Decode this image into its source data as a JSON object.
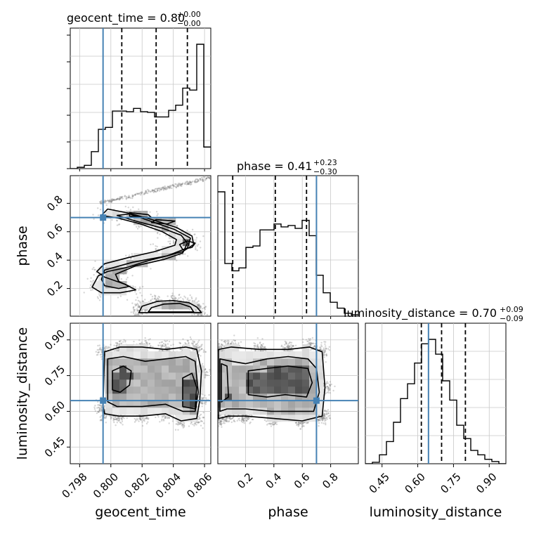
{
  "chart_data": {
    "type": "corner",
    "parameters": [
      {
        "name": "geocent_time",
        "label": "geocent_time",
        "title_main": "geocent_time = 0.80",
        "title_plus": "+0.00",
        "title_minus": "−0.00",
        "range": [
          0.7974,
          0.8064
        ],
        "ticks": [
          0.798,
          0.8,
          0.802,
          0.804,
          0.806
        ],
        "tick_labels": [
          "0.798",
          "0.800",
          "0.802",
          "0.804",
          "0.806"
        ],
        "truth": 0.7995,
        "quantiles": [
          0.8007,
          0.8029,
          0.8049
        ],
        "hist_edges_start": 0.7974,
        "hist_bin_width": 0.00045,
        "hist_counts": [
          0,
          2,
          5,
          26,
          60,
          63,
          88,
          88,
          87,
          92,
          87,
          86,
          79,
          79,
          89,
          97,
          123,
          120,
          190,
          33
        ]
      },
      {
        "name": "phase",
        "label": "phase",
        "title_main": "phase = 0.41",
        "title_plus": "+0.23",
        "title_minus": "−0.30",
        "range": [
          0.005,
          0.995
        ],
        "ticks": [
          0.2,
          0.4,
          0.6,
          0.8
        ],
        "tick_labels": [
          "0.2",
          "0.4",
          "0.6",
          "0.8"
        ],
        "truth": 0.7,
        "quantiles": [
          0.11,
          0.41,
          0.63
        ],
        "hist_edges_start": 0.005,
        "hist_bin_width": 0.0495,
        "hist_counts": [
          170,
          72,
          62,
          66,
          94,
          96,
          118,
          118,
          126,
          122,
          124,
          120,
          131,
          110,
          56,
          32,
          19,
          11,
          4,
          2
        ]
      },
      {
        "name": "luminosity_distance",
        "label": "luminosity_distance",
        "title_main": "luminosity_distance = 0.70",
        "title_plus": "+0.09",
        "title_minus": "−0.09",
        "range": [
          0.38,
          0.97
        ],
        "ticks": [
          0.45,
          0.6,
          0.75,
          0.9
        ],
        "tick_labels": [
          "0.45",
          "0.60",
          "0.75",
          "0.90"
        ],
        "truth": 0.645,
        "quantiles": [
          0.615,
          0.7,
          0.8
        ],
        "hist_edges_start": 0.38,
        "hist_bin_width": 0.0295,
        "hist_counts": [
          0,
          2,
          12,
          30,
          56,
          88,
          108,
          136,
          162,
          168,
          148,
          112,
          86,
          52,
          34,
          18,
          12,
          6,
          3,
          0
        ]
      }
    ],
    "y_ticks": {
      "phase": {
        "ticks": [
          0.2,
          0.4,
          0.6,
          0.8
        ],
        "tick_labels": [
          "0.2",
          "0.4",
          "0.6",
          "0.8"
        ]
      },
      "luminosity_distance": {
        "ticks": [
          0.45,
          0.6,
          0.75,
          0.9
        ],
        "tick_labels": [
          "0.45",
          "0.60",
          "0.75",
          "0.90"
        ]
      }
    },
    "truth_color": "#4682b4",
    "quantile_line_style": "dashed",
    "grid": true,
    "contour_shapes": {
      "phase_vs_geocent_time": [
        {
          "level": 1,
          "points": [
            [
              0.7988,
              0.21
            ],
            [
              0.7992,
              0.29
            ],
            [
              0.7998,
              0.32
            ],
            [
              0.8011,
              0.35
            ],
            [
              0.8022,
              0.39
            ],
            [
              0.8036,
              0.43
            ],
            [
              0.8046,
              0.46
            ],
            [
              0.8053,
              0.51
            ],
            [
              0.8052,
              0.57
            ],
            [
              0.8042,
              0.63
            ],
            [
              0.8028,
              0.68
            ],
            [
              0.8012,
              0.73
            ],
            [
              0.7998,
              0.76
            ],
            [
              0.7994,
              0.715
            ],
            [
              0.8005,
              0.695
            ],
            [
              0.8019,
              0.655
            ],
            [
              0.8033,
              0.6
            ],
            [
              0.8042,
              0.545
            ],
            [
              0.8041,
              0.505
            ],
            [
              0.8028,
              0.46
            ],
            [
              0.8012,
              0.42
            ],
            [
              0.7996,
              0.375
            ],
            [
              0.7991,
              0.32
            ],
            [
              0.7996,
              0.28
            ],
            [
              0.8009,
              0.23
            ],
            [
              0.8016,
              0.19
            ],
            [
              0.8006,
              0.17
            ],
            [
              0.7994,
              0.17
            ]
          ]
        },
        {
          "level": 2,
          "points": [
            [
              0.7996,
              0.22
            ],
            [
              0.8005,
              0.2
            ],
            [
              0.8012,
              0.215
            ],
            [
              0.8005,
              0.25
            ],
            [
              0.8003,
              0.3
            ],
            [
              0.8016,
              0.36
            ],
            [
              0.8034,
              0.405
            ],
            [
              0.8046,
              0.45
            ],
            [
              0.8049,
              0.52
            ],
            [
              0.8045,
              0.575
            ],
            [
              0.8033,
              0.625
            ],
            [
              0.8016,
              0.675
            ],
            [
              0.8004,
              0.715
            ],
            [
              0.8012,
              0.725
            ],
            [
              0.8028,
              0.665
            ],
            [
              0.8041,
              0.615
            ],
            [
              0.8051,
              0.555
            ],
            [
              0.8049,
              0.485
            ],
            [
              0.8036,
              0.43
            ],
            [
              0.8014,
              0.385
            ],
            [
              0.7996,
              0.33
            ],
            [
              0.7994,
              0.265
            ]
          ]
        },
        {
          "level": 2,
          "points": [
            [
              0.8012,
              0.735
            ],
            [
              0.8024,
              0.72
            ],
            [
              0.8026,
              0.7
            ],
            [
              0.8012,
              0.71
            ]
          ]
        },
        {
          "level": 2,
          "points": [
            [
              0.8029,
              0.685
            ],
            [
              0.8041,
              0.675
            ],
            [
              0.8036,
              0.655
            ],
            [
              0.8026,
              0.665
            ]
          ]
        },
        {
          "level": 3,
          "points": [
            [
              0.8049,
              0.535
            ],
            [
              0.8054,
              0.52
            ],
            [
              0.8052,
              0.49
            ],
            [
              0.8046,
              0.475
            ],
            [
              0.8044,
              0.51
            ]
          ]
        },
        {
          "level": 1,
          "points": [
            [
              0.802,
              0.075
            ],
            [
              0.803,
              0.11
            ],
            [
              0.804,
              0.115
            ],
            [
              0.805,
              0.1
            ],
            [
              0.8055,
              0.07
            ],
            [
              0.8058,
              0.03
            ],
            [
              0.8018,
              0.03
            ]
          ]
        },
        {
          "level": 2,
          "points": [
            [
              0.8026,
              0.065
            ],
            [
              0.8034,
              0.09
            ],
            [
              0.8044,
              0.095
            ],
            [
              0.8051,
              0.07
            ],
            [
              0.8053,
              0.035
            ],
            [
              0.8024,
              0.035
            ]
          ]
        }
      ],
      "luminosity_distance_vs_geocent_time": [
        {
          "level": 1,
          "points": [
            [
              0.7995,
              0.62
            ],
            [
              0.7996,
              0.85
            ],
            [
              0.8006,
              0.87
            ],
            [
              0.802,
              0.87
            ],
            [
              0.8035,
              0.86
            ],
            [
              0.8048,
              0.87
            ],
            [
              0.8055,
              0.86
            ],
            [
              0.8058,
              0.77
            ],
            [
              0.8057,
              0.65
            ],
            [
              0.8055,
              0.57
            ],
            [
              0.8045,
              0.56
            ],
            [
              0.8035,
              0.59
            ],
            [
              0.802,
              0.58
            ],
            [
              0.8005,
              0.58
            ],
            [
              0.7996,
              0.59
            ]
          ]
        },
        {
          "level": 2,
          "points": [
            [
              0.7998,
              0.64
            ],
            [
              0.7998,
              0.82
            ],
            [
              0.8008,
              0.83
            ],
            [
              0.8022,
              0.81
            ],
            [
              0.8035,
              0.82
            ],
            [
              0.8048,
              0.83
            ],
            [
              0.8054,
              0.81
            ],
            [
              0.8056,
              0.68
            ],
            [
              0.8054,
              0.6
            ],
            [
              0.8046,
              0.6
            ],
            [
              0.8035,
              0.63
            ],
            [
              0.802,
              0.62
            ],
            [
              0.8004,
              0.62
            ]
          ]
        },
        {
          "level": 3,
          "points": [
            [
              0.8001,
              0.69
            ],
            [
              0.8001,
              0.77
            ],
            [
              0.8008,
              0.79
            ],
            [
              0.8013,
              0.77
            ],
            [
              0.8012,
              0.71
            ],
            [
              0.8006,
              0.68
            ]
          ]
        },
        {
          "level": 3,
          "points": [
            [
              0.8046,
              0.62
            ],
            [
              0.8046,
              0.74
            ],
            [
              0.8052,
              0.76
            ],
            [
              0.8055,
              0.7
            ],
            [
              0.8054,
              0.61
            ]
          ]
        }
      ],
      "luminosity_distance_vs_phase": [
        {
          "level": 1,
          "points": [
            [
              0.01,
              0.57
            ],
            [
              0.01,
              0.86
            ],
            [
              0.1,
              0.87
            ],
            [
              0.3,
              0.86
            ],
            [
              0.5,
              0.86
            ],
            [
              0.65,
              0.87
            ],
            [
              0.74,
              0.85
            ],
            [
              0.76,
              0.7
            ],
            [
              0.74,
              0.58
            ],
            [
              0.6,
              0.56
            ],
            [
              0.4,
              0.57
            ],
            [
              0.2,
              0.58
            ],
            [
              0.08,
              0.58
            ]
          ]
        },
        {
          "level": 2,
          "points": [
            [
              0.02,
              0.6
            ],
            [
              0.02,
              0.82
            ],
            [
              0.1,
              0.81
            ],
            [
              0.2,
              0.8
            ],
            [
              0.35,
              0.82
            ],
            [
              0.5,
              0.83
            ],
            [
              0.64,
              0.82
            ],
            [
              0.7,
              0.78
            ],
            [
              0.72,
              0.68
            ],
            [
              0.68,
              0.6
            ],
            [
              0.55,
              0.6
            ],
            [
              0.38,
              0.6
            ],
            [
              0.2,
              0.61
            ],
            [
              0.07,
              0.61
            ]
          ]
        },
        {
          "level": 3,
          "points": [
            [
              0.03,
              0.64
            ],
            [
              0.03,
              0.8
            ],
            [
              0.07,
              0.79
            ],
            [
              0.08,
              0.66
            ]
          ]
        },
        {
          "level": 3,
          "points": [
            [
              0.22,
              0.67
            ],
            [
              0.22,
              0.77
            ],
            [
              0.35,
              0.78
            ],
            [
              0.5,
              0.79
            ],
            [
              0.64,
              0.78
            ],
            [
              0.67,
              0.72
            ],
            [
              0.63,
              0.66
            ],
            [
              0.48,
              0.67
            ],
            [
              0.35,
              0.66
            ]
          ]
        }
      ]
    }
  }
}
